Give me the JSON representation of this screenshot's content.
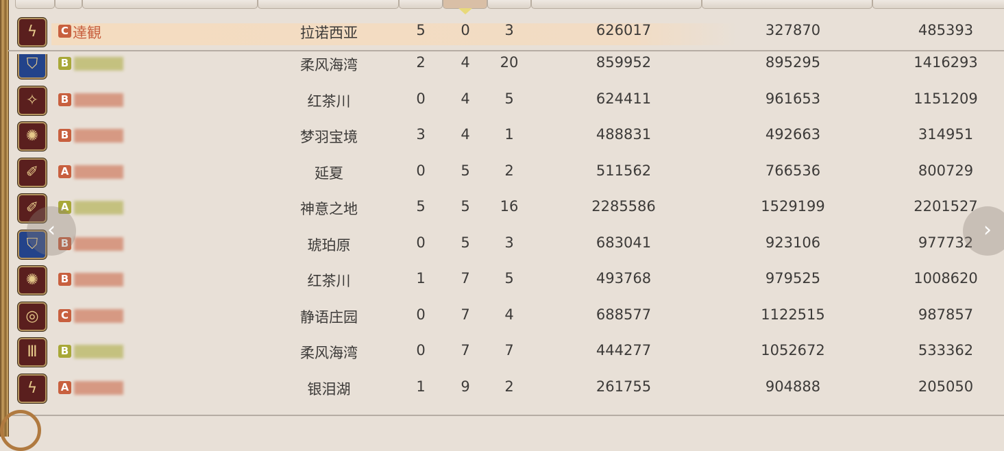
{
  "colors": {
    "team_orange": "#c8603f",
    "team_olive": "#a8a838",
    "icon_red": "#5a1f1e",
    "icon_blue": "#23438a"
  },
  "self_row": {
    "job_icon": "machinist-icon",
    "rank": "C",
    "name": "達観",
    "team": "orange",
    "map": "拉诺西亚",
    "c1": "5",
    "c2": "0",
    "c3": "3",
    "c4": "626017",
    "c5": "327870",
    "c6": "485393"
  },
  "rows": [
    {
      "job_icon": "paladin-icon",
      "icon_bg": "blue",
      "rank": "B",
      "team": "olive",
      "map": "柔风海湾",
      "c1": "2",
      "c2": "4",
      "c3": "20",
      "c4": "859952",
      "c5": "895295",
      "c6": "1416293"
    },
    {
      "job_icon": "dancer-icon",
      "icon_bg": "red",
      "rank": "B",
      "team": "orange",
      "map": "红茶川",
      "c1": "0",
      "c2": "4",
      "c3": "5",
      "c4": "624411",
      "c5": "961653",
      "c6": "1151209"
    },
    {
      "job_icon": "astrologian-icon",
      "icon_bg": "red",
      "rank": "B",
      "team": "orange",
      "map": "梦羽宝境",
      "c1": "3",
      "c2": "4",
      "c3": "1",
      "c4": "488831",
      "c5": "492663",
      "c6": "314951"
    },
    {
      "job_icon": "red-mage-icon",
      "icon_bg": "red",
      "rank": "A",
      "team": "orange",
      "map": "延夏",
      "c1": "0",
      "c2": "5",
      "c3": "2",
      "c4": "511562",
      "c5": "766536",
      "c6": "800729"
    },
    {
      "job_icon": "red-mage-icon",
      "icon_bg": "red",
      "rank": "A",
      "team": "olive",
      "map": "神意之地",
      "c1": "5",
      "c2": "5",
      "c3": "16",
      "c4": "2285586",
      "c5": "1529199",
      "c6": "2201527"
    },
    {
      "job_icon": "paladin-icon",
      "icon_bg": "blue",
      "rank": "B",
      "team": "orange",
      "map": "琥珀原",
      "c1": "0",
      "c2": "5",
      "c3": "3",
      "c4": "683041",
      "c5": "923106",
      "c6": "977732"
    },
    {
      "job_icon": "astrologian-icon",
      "icon_bg": "red",
      "rank": "B",
      "team": "orange",
      "map": "红茶川",
      "c1": "1",
      "c2": "7",
      "c3": "5",
      "c4": "493768",
      "c5": "979525",
      "c6": "1008620"
    },
    {
      "job_icon": "ninja-icon",
      "icon_bg": "red",
      "rank": "C",
      "team": "orange",
      "map": "静语庄园",
      "c1": "0",
      "c2": "7",
      "c3": "4",
      "c4": "688577",
      "c5": "1122515",
      "c6": "987857"
    },
    {
      "job_icon": "bard-icon",
      "icon_bg": "red",
      "rank": "B",
      "team": "olive",
      "map": "柔风海湾",
      "c1": "0",
      "c2": "7",
      "c3": "7",
      "c4": "444277",
      "c5": "1052672",
      "c6": "533362"
    },
    {
      "job_icon": "machinist-icon",
      "icon_bg": "red",
      "rank": "A",
      "team": "orange",
      "map": "银泪湖",
      "c1": "1",
      "c2": "9",
      "c3": "2",
      "c4": "261755",
      "c5": "904888",
      "c6": "205050"
    }
  ],
  "nav": {
    "prev": "‹",
    "next": "›"
  }
}
